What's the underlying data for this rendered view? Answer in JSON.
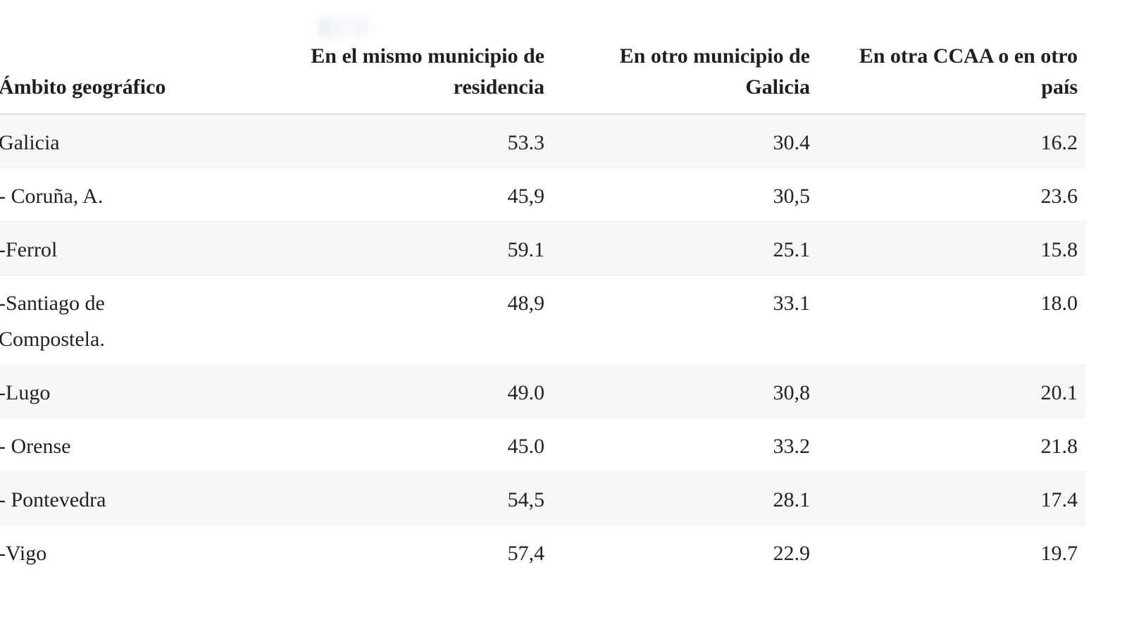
{
  "colors": {
    "background": "#ffffff",
    "stripe": "#f7f7f7",
    "header_border": "#dfdfdf",
    "text": "#222222"
  },
  "chart_data": {
    "type": "table",
    "columns": [
      {
        "id": "ambito-geografico",
        "align": "left",
        "lines": [
          "Ámbito geográfico"
        ]
      },
      {
        "id": "mismo-municipio",
        "align": "right",
        "lines": [
          "En el mismo municipio de",
          "residencia"
        ]
      },
      {
        "id": "otro-municipio",
        "align": "right",
        "lines": [
          "En otro municipio de",
          "Galicia"
        ]
      },
      {
        "id": "otra-ccaa",
        "align": "right",
        "lines": [
          "En otra CCAA o en otro",
          "país"
        ]
      }
    ],
    "column_headers_full": [
      "Ámbito geográfico",
      "En el mismo municipio de residencia",
      "En otro municipio de Galicia",
      "En otra CCAA o en otro país"
    ],
    "rows": [
      {
        "label": "Galicia",
        "values": [
          "53.3",
          "30.4",
          "16.2"
        ],
        "values_numeric": [
          53.3,
          30.4,
          16.2
        ]
      },
      {
        "label": "- Coruña, A.",
        "values": [
          "45,9",
          "30,5",
          "23.6"
        ],
        "values_numeric": [
          45.9,
          30.5,
          23.6
        ]
      },
      {
        "label": "-Ferrol",
        "values": [
          "59.1",
          "25.1",
          "15.8"
        ],
        "values_numeric": [
          59.1,
          25.1,
          15.8
        ]
      },
      {
        "label": "-Santiago de Compostela.",
        "values": [
          "48,9",
          "33.1",
          "18.0"
        ],
        "values_numeric": [
          48.9,
          33.1,
          18.0
        ]
      },
      {
        "label": "-Lugo",
        "values": [
          "49.0",
          "30,8",
          "20.1"
        ],
        "values_numeric": [
          49.0,
          30.8,
          20.1
        ]
      },
      {
        "label": "- Orense",
        "values": [
          "45.0",
          "33.2",
          "21.8"
        ],
        "values_numeric": [
          45.0,
          33.2,
          21.8
        ]
      },
      {
        "label": "- Pontevedra",
        "values": [
          "54,5",
          "28.1",
          "17.4"
        ],
        "values_numeric": [
          54.5,
          28.1,
          17.4
        ]
      },
      {
        "label": "-Vigo",
        "values": [
          "57,4",
          "22.9",
          "19.7"
        ],
        "values_numeric": [
          57.4,
          22.9,
          19.7
        ]
      }
    ]
  }
}
